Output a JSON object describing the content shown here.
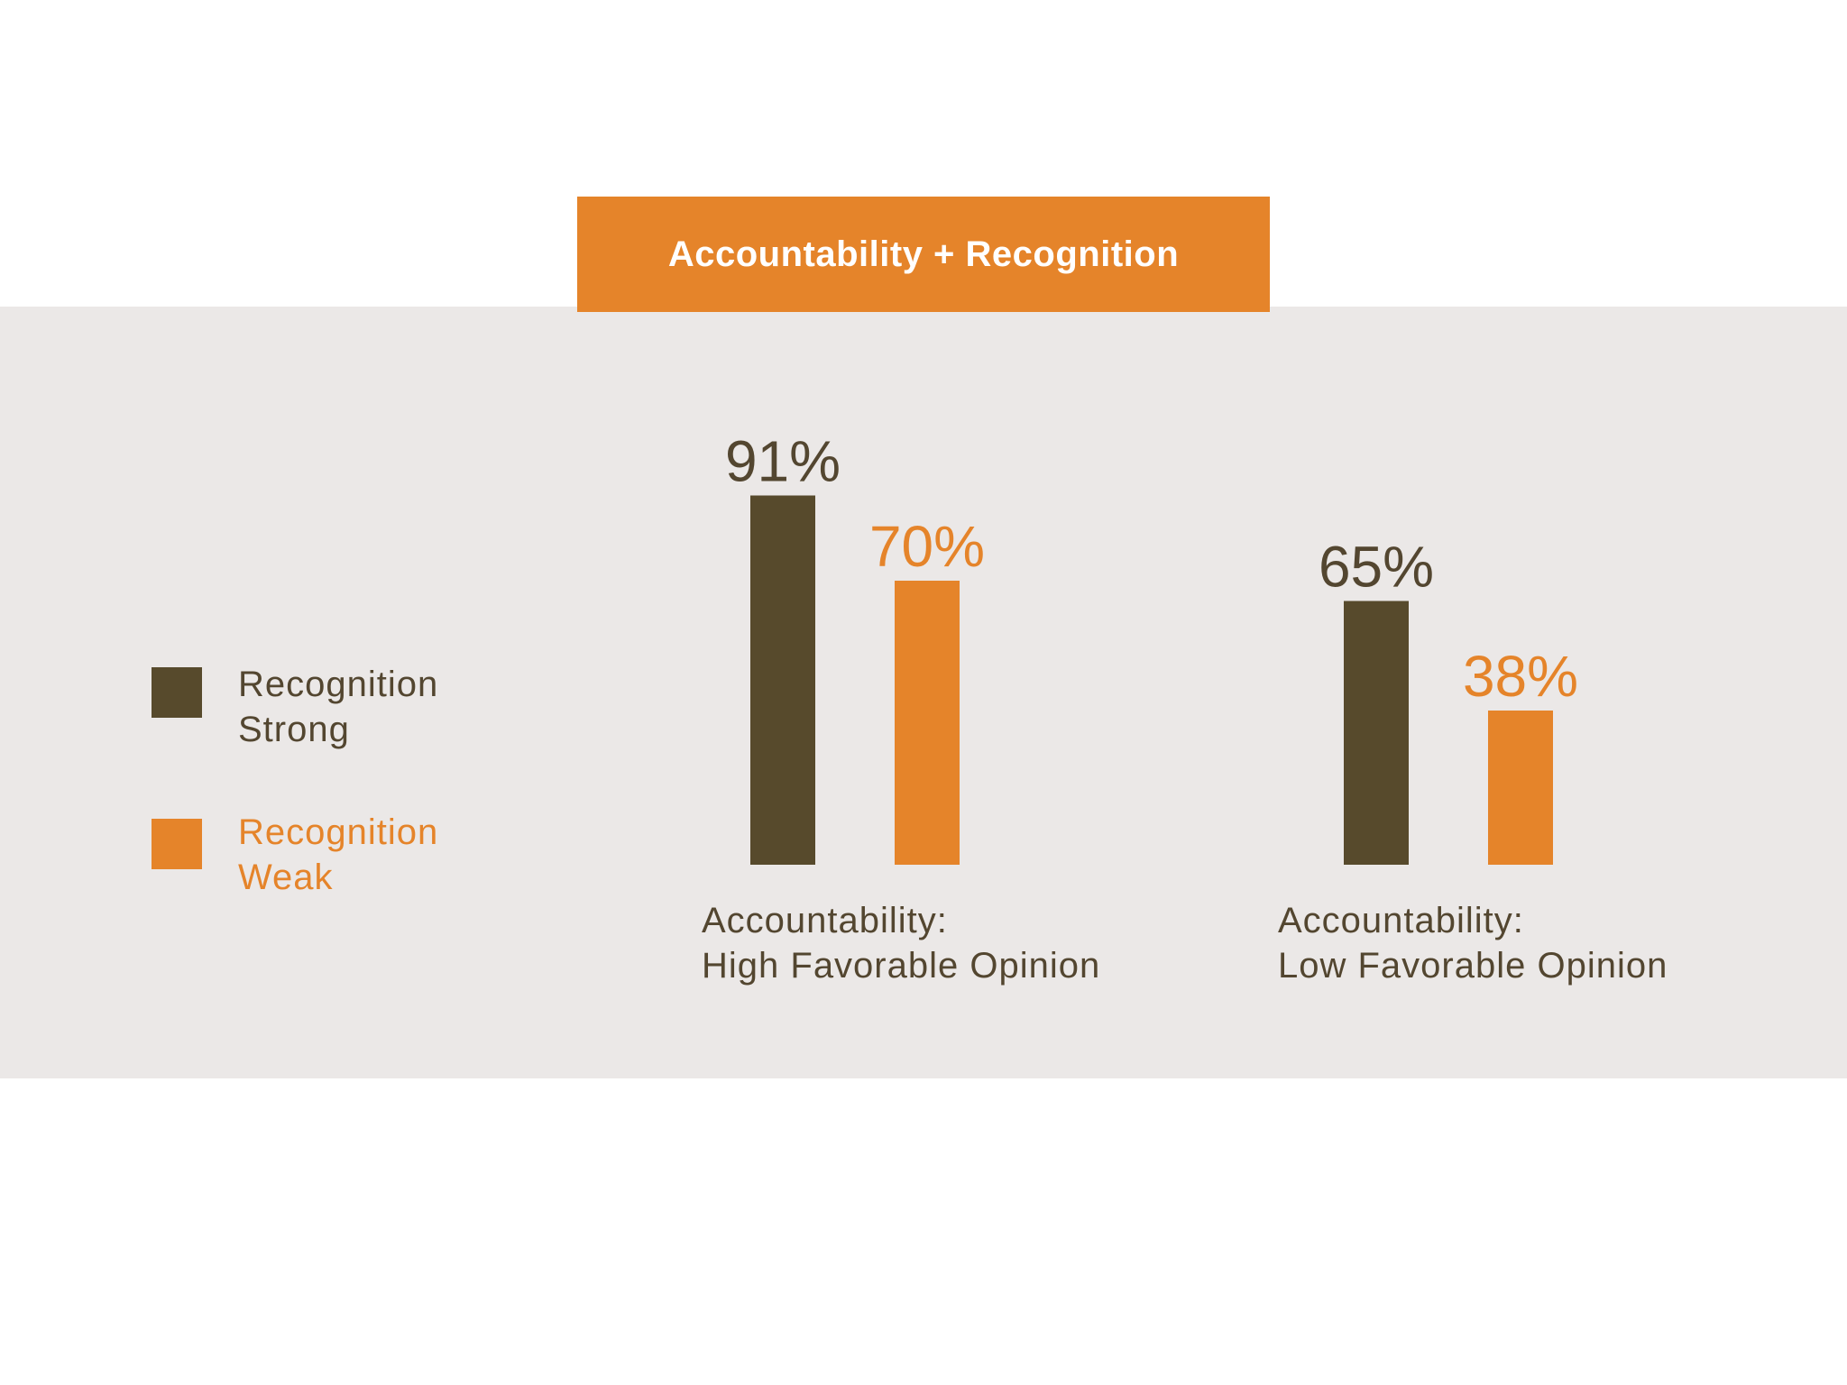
{
  "colors": {
    "strong": "#574a2c",
    "weak": "#e5842a",
    "panel": "#ebe8e7",
    "text_dark": "#534630"
  },
  "chart_data": {
    "type": "bar",
    "title": "Accountability + Recognition",
    "categories": [
      [
        "Accountability:",
        "High Favorable Opinion"
      ],
      [
        "Accountability:",
        "Low Favorable Opinion"
      ]
    ],
    "series": [
      {
        "name": [
          "Recognition",
          "Strong"
        ],
        "values": [
          91,
          65
        ],
        "labels": [
          "91%",
          "65%"
        ],
        "color": "#574a2c"
      },
      {
        "name": [
          "Recognition",
          "Weak"
        ],
        "values": [
          70,
          38
        ],
        "labels": [
          "70%",
          "38%"
        ],
        "color": "#e5842a"
      }
    ],
    "ylim": [
      0,
      100
    ],
    "unit": "%",
    "legend": "left",
    "grid": false
  }
}
